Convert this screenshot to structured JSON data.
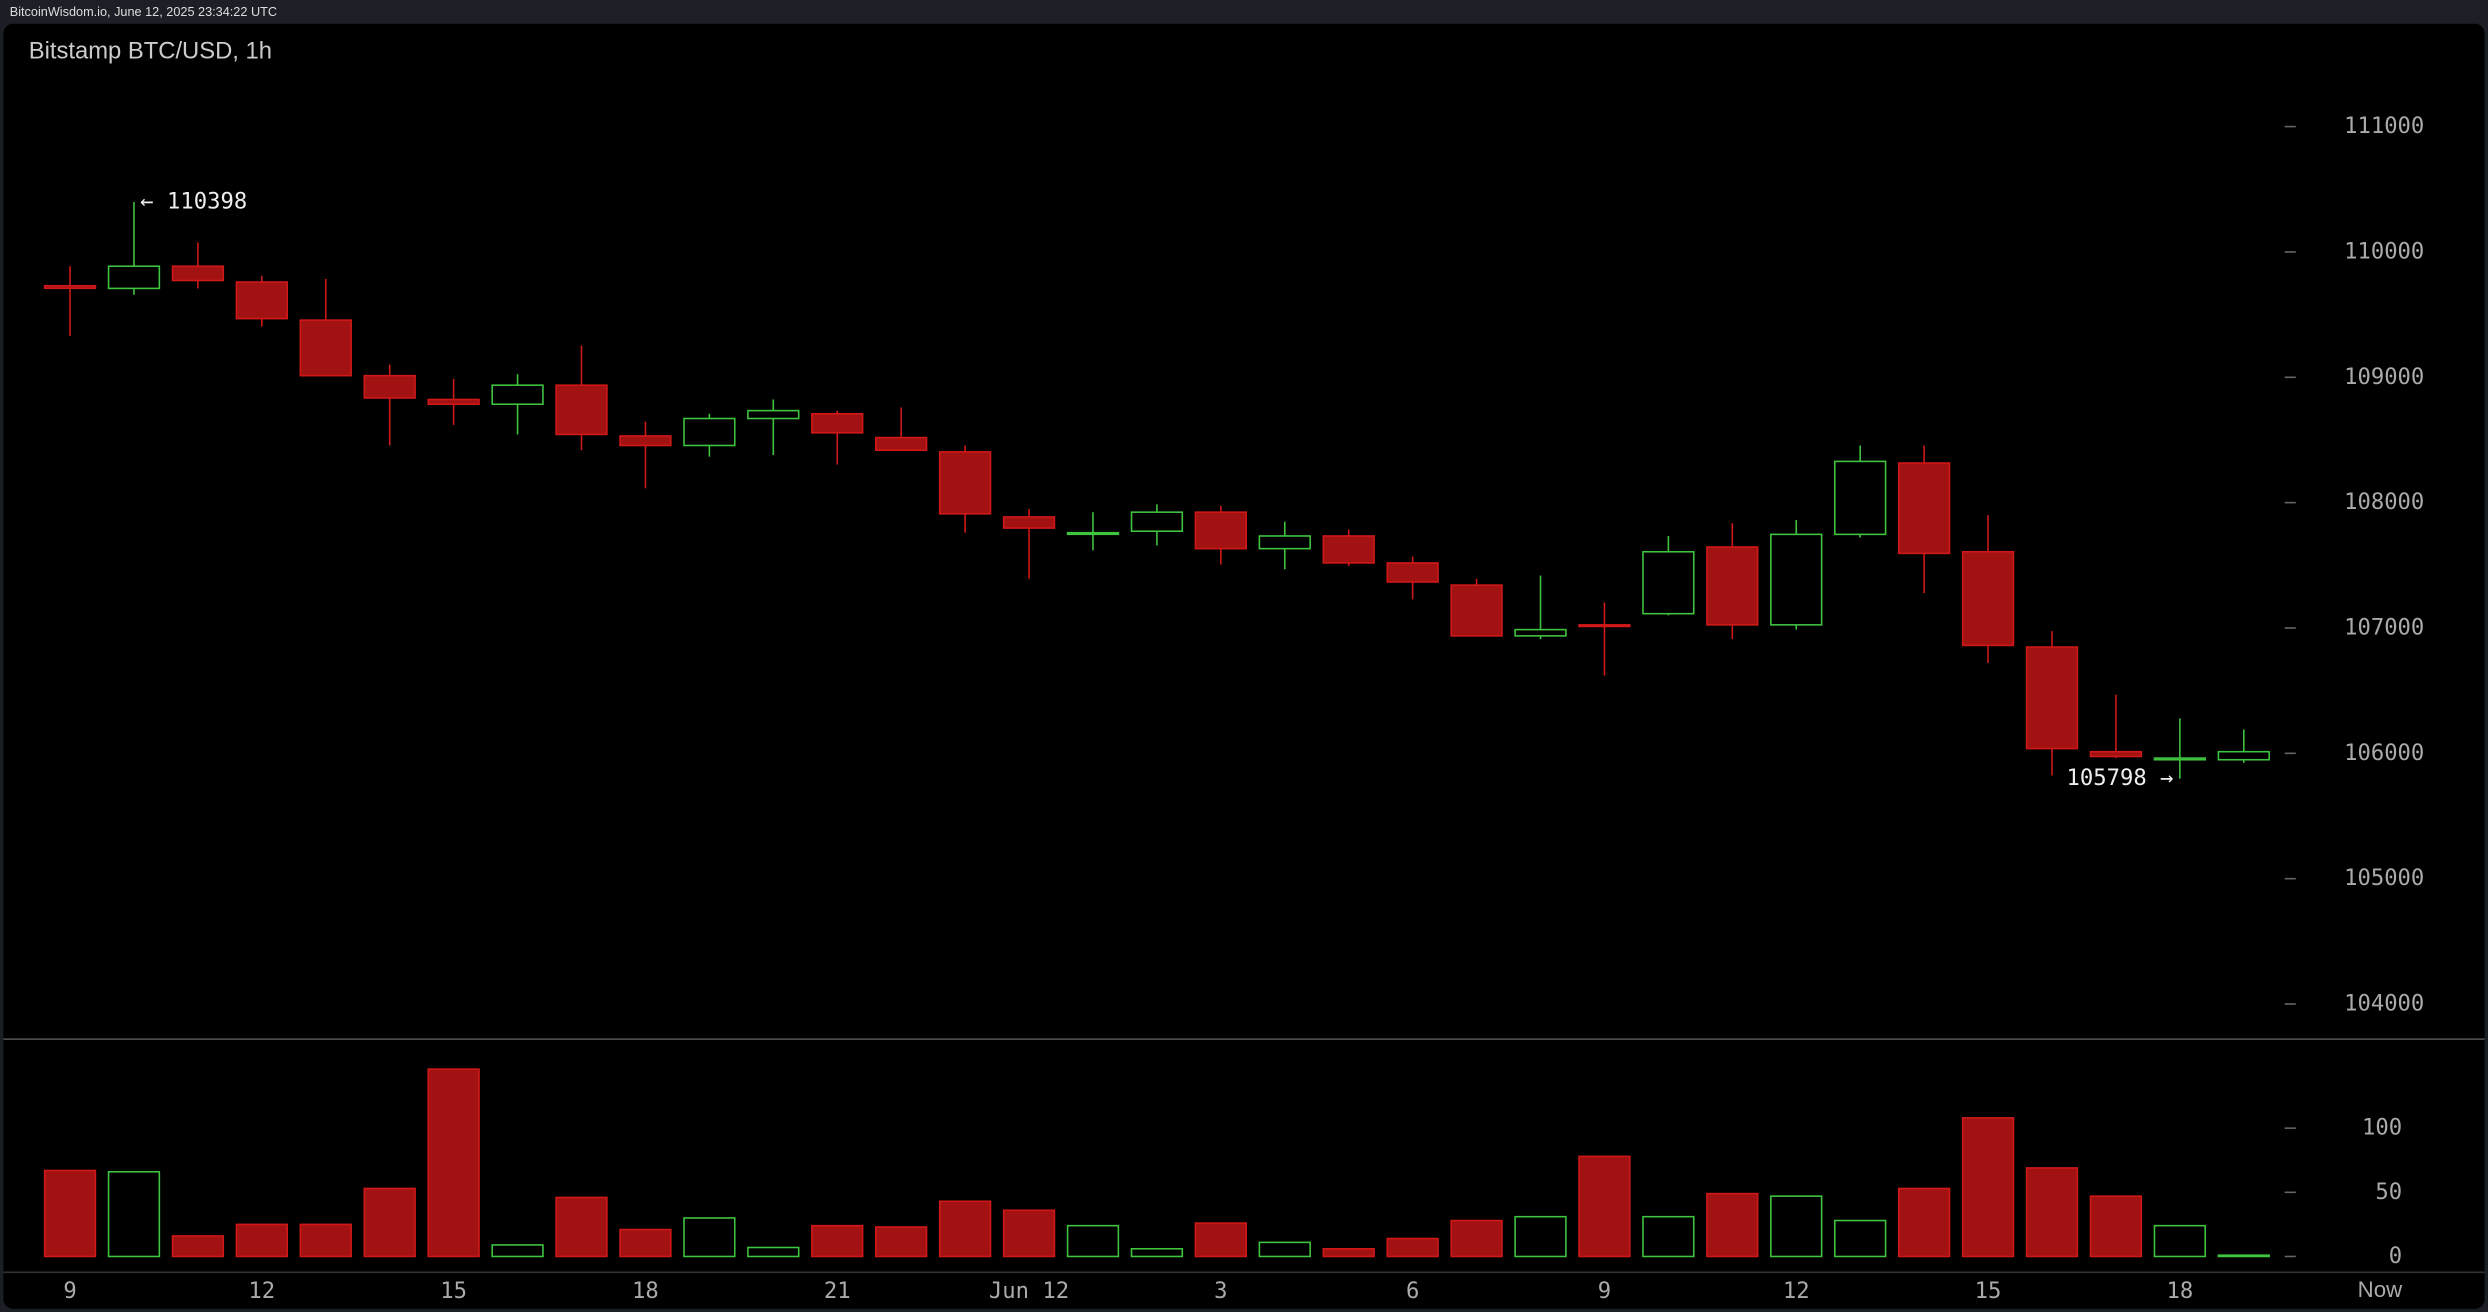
{
  "header": "BitcoinWisdom.io, June 12, 2025 23:34:22 UTC",
  "chart_data": {
    "type": "candlestick",
    "title": "Bitstamp BTC/USD, 1h",
    "categories": [
      "9",
      null,
      null,
      "12",
      null,
      null,
      "15",
      null,
      null,
      "18",
      null,
      null,
      "21",
      null,
      null,
      "Jun 12",
      null,
      null,
      "3",
      null,
      null,
      "6",
      null,
      null,
      "9",
      null,
      null,
      "12",
      null,
      null,
      "15",
      null,
      null,
      "18",
      null
    ],
    "now_label": "Now",
    "open": [
      109730,
      109709,
      109886,
      109760,
      109456,
      109013,
      108823,
      108785,
      108937,
      108532,
      108456,
      108671,
      108709,
      108519,
      108405,
      107886,
      107750,
      107772,
      107924,
      107633,
      107734,
      107519,
      107342,
      106937,
      107025,
      107114,
      107646,
      107025,
      107747,
      108316,
      107608,
      106848,
      106013,
      105949,
      105949
    ],
    "high": [
      109886,
      110398,
      110076,
      109810,
      109785,
      109101,
      108987,
      109025,
      109253,
      108646,
      108709,
      108823,
      108734,
      108759,
      108456,
      107949,
      107924,
      107987,
      107975,
      107848,
      107785,
      107570,
      107392,
      107418,
      107203,
      107734,
      107835,
      107861,
      108456,
      108456,
      107899,
      106975,
      106468,
      106278,
      106190
    ],
    "low": [
      109329,
      109658,
      109709,
      109405,
      109013,
      108456,
      108620,
      108544,
      108418,
      108114,
      108367,
      108380,
      108304,
      108418,
      107759,
      107392,
      107620,
      107658,
      107506,
      107468,
      107494,
      107228,
      106937,
      106911,
      106620,
      107101,
      106911,
      106987,
      107722,
      107278,
      106722,
      105823,
      105962,
      105798,
      105924
    ],
    "close": [
      109710,
      109886,
      109772,
      109468,
      109013,
      108835,
      108785,
      108937,
      108544,
      108456,
      108671,
      108734,
      108557,
      108418,
      107911,
      107797,
      107760,
      107924,
      107633,
      107734,
      107519,
      107367,
      106937,
      106987,
      107020,
      107608,
      107025,
      107747,
      108329,
      107595,
      106861,
      106038,
      105975,
      105962,
      106013
    ],
    "high_label": "← 110398",
    "low_label": "105798 →",
    "up_color": "#3fc43f",
    "down_color": "#a31212",
    "down_stroke": "#d01818",
    "ylim": [
      103720,
      111820
    ],
    "yticks": [
      104000,
      105000,
      106000,
      107000,
      108000,
      109000,
      110000,
      111000
    ],
    "volume": {
      "values": [
        67,
        66,
        16,
        25,
        25,
        53,
        146,
        9,
        46,
        21,
        30,
        7,
        24,
        23,
        43,
        36,
        24,
        6,
        26,
        11,
        6,
        14,
        28,
        31,
        78,
        31,
        49,
        47,
        28,
        53,
        108,
        69,
        47,
        24,
        1
      ],
      "ylim": [
        0,
        157
      ],
      "yticks": [
        0,
        50,
        100
      ]
    }
  }
}
